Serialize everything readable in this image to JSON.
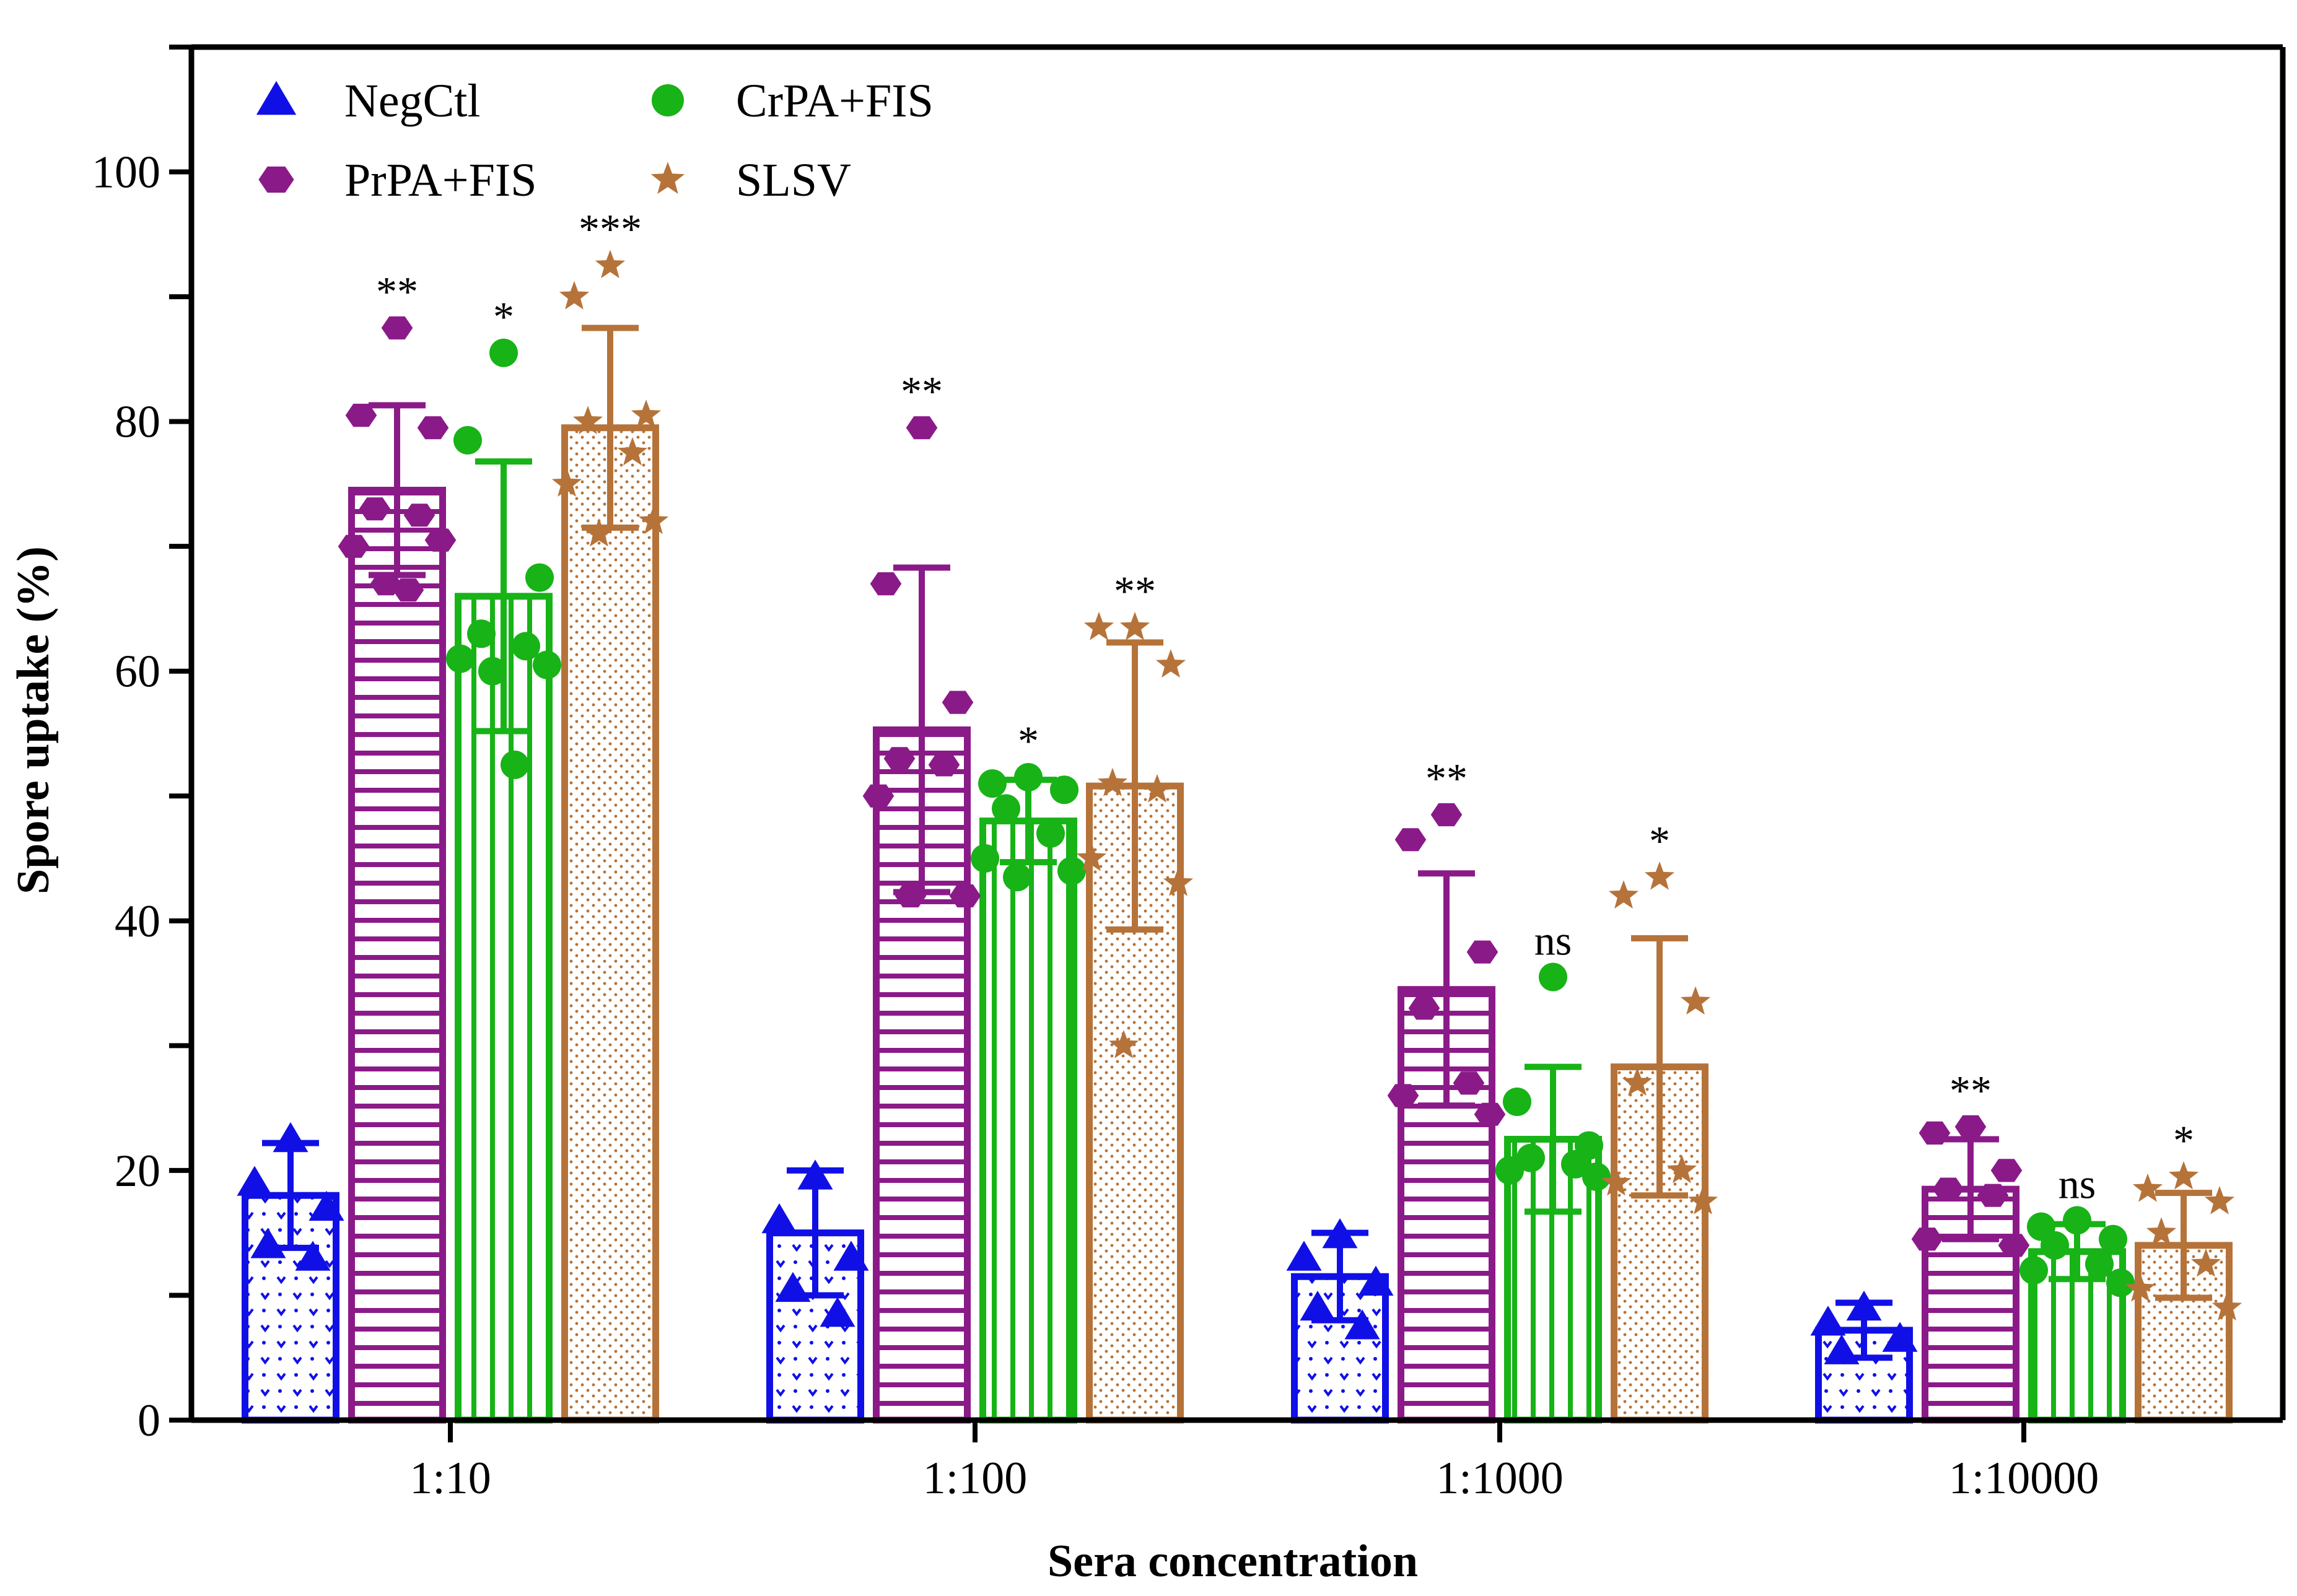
{
  "chart_data": {
    "type": "bar",
    "title": "",
    "xlabel": "Sera concentration",
    "ylabel": "Spore uptake (%)",
    "ylim": [
      0,
      110
    ],
    "yticks": [
      0,
      20,
      40,
      60,
      80,
      100
    ],
    "grid": false,
    "legend_position": "top-left",
    "categories": [
      "1:10",
      "1:100",
      "1:1000",
      "1:10000"
    ],
    "series": [
      {
        "name": "NegCtl",
        "color": "#1010e6",
        "marker": "triangle",
        "pattern": "dots-v",
        "values": [
          18,
          15,
          11.5,
          7.2
        ],
        "error": [
          4.2,
          5,
          3.5,
          2.2
        ],
        "points": [
          [
            22.5,
            19,
            17,
            14,
            13
          ],
          [
            19.5,
            16,
            13,
            10.5,
            8.5
          ],
          [
            14.8,
            13,
            11,
            9,
            7.5
          ],
          [
            9,
            7.8,
            6.5,
            5.5
          ]
        ],
        "significance": [
          "",
          "",
          "",
          ""
        ]
      },
      {
        "name": "PrPA+FIS",
        "color": "#8b1a89",
        "marker": "hexagon",
        "pattern": "hlines",
        "values": [
          74.5,
          55.3,
          34.5,
          18.5
        ],
        "error": [
          6.8,
          13,
          9.3,
          4
        ],
        "points": [
          [
            87.5,
            80.5,
            79.5,
            73,
            72.5,
            70,
            70.5,
            67,
            66.5
          ],
          [
            79.5,
            67,
            57.5,
            53,
            52.5,
            50,
            42,
            42
          ],
          [
            48.5,
            46.5,
            37.5,
            33,
            27,
            26,
            24.5
          ],
          [
            23.5,
            23,
            20,
            18.5,
            18,
            14.5,
            14
          ]
        ],
        "significance": [
          "**",
          "**",
          "**",
          "**"
        ]
      },
      {
        "name": "CrPA+FIS",
        "color": "#17b317",
        "marker": "circle",
        "pattern": "vlines",
        "values": [
          66,
          48,
          22.5,
          13.5
        ],
        "error": [
          10.8,
          3.3,
          5.8,
          2.2
        ],
        "points": [
          [
            85.5,
            78.5,
            67.5,
            63,
            62,
            61,
            60.5,
            60,
            52.5
          ],
          [
            51.5,
            51,
            50.5,
            49,
            47,
            45,
            44,
            43.5
          ],
          [
            35.5,
            25.5,
            22,
            21,
            20.5,
            20,
            19.5
          ],
          [
            16,
            15.5,
            14.5,
            14,
            12.5,
            12,
            11
          ]
        ],
        "significance": [
          "*",
          "*",
          "ns",
          "ns"
        ]
      },
      {
        "name": "SLSV",
        "color": "#b5733a",
        "marker": "star",
        "pattern": "dots",
        "values": [
          79.5,
          50.8,
          28.3,
          14
        ],
        "error": [
          8,
          11.5,
          10.3,
          4.2
        ],
        "points": [
          [
            92.5,
            90,
            80.5,
            80,
            77.5,
            75,
            72,
            71
          ],
          [
            63.5,
            63.5,
            60.5,
            51,
            50.5,
            45,
            43,
            30
          ],
          [
            43.5,
            42,
            33.5,
            27,
            20,
            19,
            17.5
          ],
          [
            19.5,
            18.5,
            17.5,
            15,
            12.5,
            10.5,
            9
          ]
        ],
        "significance": [
          "***",
          "**",
          "*",
          "*"
        ]
      }
    ]
  }
}
